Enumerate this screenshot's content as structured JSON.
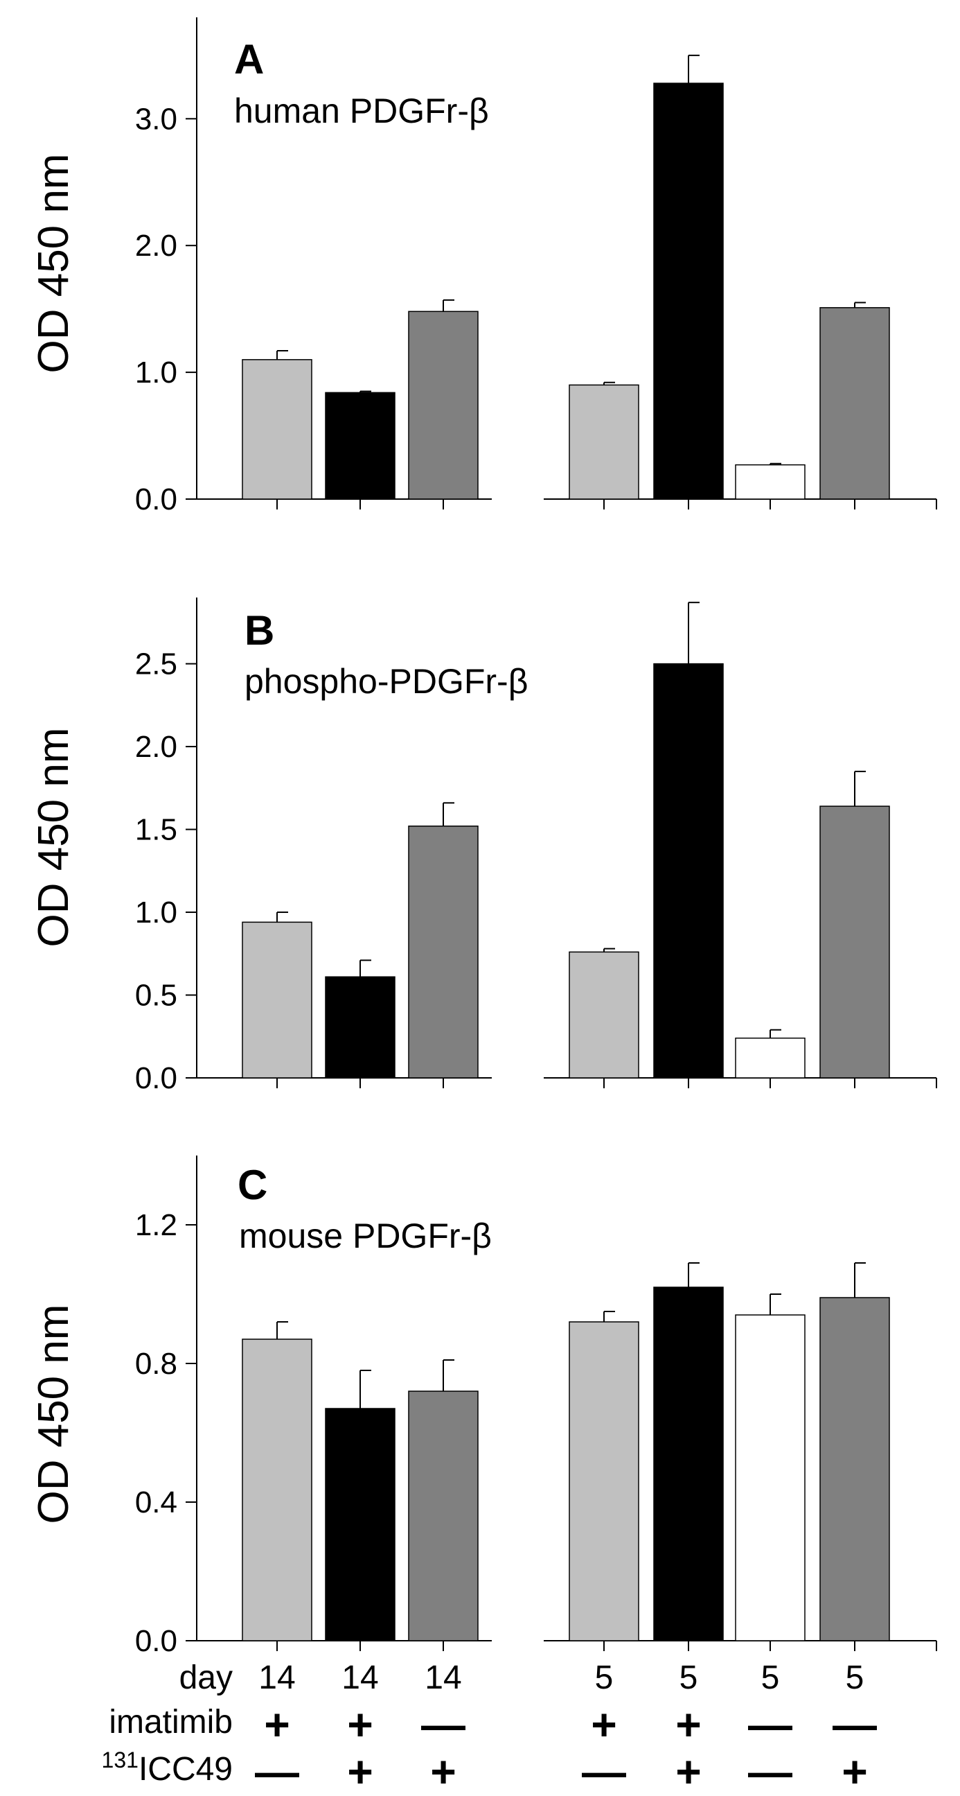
{
  "chart_data": [
    {
      "type": "bar",
      "panel": "A",
      "title": "human PDGFr-β",
      "ylabel": "OD 450 nm",
      "ylim": [
        0,
        3.8
      ],
      "yticks": [
        0.0,
        1.0,
        2.0,
        3.0
      ],
      "ytick_labels": [
        "0.0",
        "1.0",
        "2.0",
        "3.0"
      ],
      "groups": [
        {
          "bars": [
            {
              "value": 1.1,
              "error": 0.07,
              "color": "#c0c0c0"
            },
            {
              "value": 0.84,
              "error": 0.01,
              "color": "#000000"
            },
            {
              "value": 1.48,
              "error": 0.09,
              "color": "#808080"
            }
          ]
        },
        {
          "bars": [
            {
              "value": 0.9,
              "error": 0.02,
              "color": "#c0c0c0"
            },
            {
              "value": 3.28,
              "error": 0.22,
              "color": "#000000"
            },
            {
              "value": 0.27,
              "error": 0.01,
              "color": "#ffffff"
            },
            {
              "value": 1.51,
              "error": 0.04,
              "color": "#808080"
            }
          ]
        }
      ]
    },
    {
      "type": "bar",
      "panel": "B",
      "title": "phospho-PDGFr-β",
      "ylabel": "OD 450 nm",
      "ylim": [
        0,
        2.9
      ],
      "yticks": [
        0.0,
        0.5,
        1.0,
        1.5,
        2.0,
        2.5
      ],
      "ytick_labels": [
        "0.0",
        "0.5",
        "1.0",
        "1.5",
        "2.0",
        "2.5"
      ],
      "groups": [
        {
          "bars": [
            {
              "value": 0.94,
              "error": 0.06,
              "color": "#c0c0c0"
            },
            {
              "value": 0.61,
              "error": 0.1,
              "color": "#000000"
            },
            {
              "value": 1.52,
              "error": 0.14,
              "color": "#808080"
            }
          ]
        },
        {
          "bars": [
            {
              "value": 0.76,
              "error": 0.02,
              "color": "#c0c0c0"
            },
            {
              "value": 2.5,
              "error": 0.37,
              "color": "#000000"
            },
            {
              "value": 0.24,
              "error": 0.05,
              "color": "#ffffff"
            },
            {
              "value": 1.64,
              "error": 0.21,
              "color": "#808080"
            }
          ]
        }
      ]
    },
    {
      "type": "bar",
      "panel": "C",
      "title": "mouse PDGFr-β",
      "ylabel": "OD 450 nm",
      "ylim": [
        0,
        1.4
      ],
      "yticks": [
        0.0,
        0.4,
        0.8,
        1.2
      ],
      "ytick_labels": [
        "0.0",
        "0.4",
        "0.8",
        "1.2"
      ],
      "groups": [
        {
          "bars": [
            {
              "value": 0.87,
              "error": 0.05,
              "color": "#c0c0c0"
            },
            {
              "value": 0.67,
              "error": 0.11,
              "color": "#000000"
            },
            {
              "value": 0.72,
              "error": 0.09,
              "color": "#808080"
            }
          ]
        },
        {
          "bars": [
            {
              "value": 0.92,
              "error": 0.03,
              "color": "#c0c0c0"
            },
            {
              "value": 1.02,
              "error": 0.07,
              "color": "#000000"
            },
            {
              "value": 0.94,
              "error": 0.06,
              "color": "#ffffff"
            },
            {
              "value": 0.99,
              "error": 0.1,
              "color": "#808080"
            }
          ]
        }
      ]
    }
  ],
  "conditions": {
    "day_label": "day",
    "imatinib_label": "imatimib",
    "icc_label_sup": "131",
    "icc_label": "ICC49",
    "group1": {
      "day": [
        "14",
        "14",
        "14"
      ],
      "imatinib": [
        "+",
        "+",
        "—"
      ],
      "icc": [
        "—",
        "+",
        "+"
      ]
    },
    "group2": {
      "day": [
        "5",
        "5",
        "5",
        "5"
      ],
      "imatinib": [
        "+",
        "+",
        "—",
        "—"
      ],
      "icc": [
        "—",
        "+",
        "—",
        "+"
      ]
    }
  }
}
